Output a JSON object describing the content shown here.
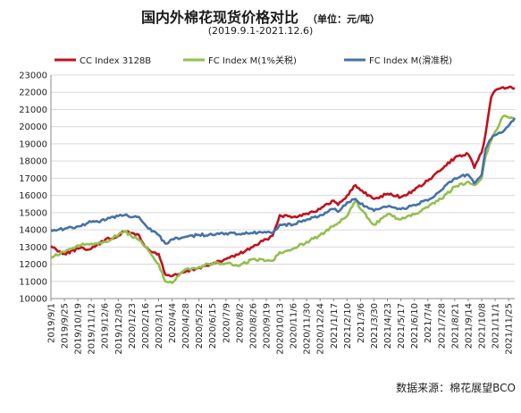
{
  "header": {
    "title": "国内外棉花现货价格对比",
    "unit": "（单位：元/吨）",
    "period": "(2019.9.1-2021.12.6)"
  },
  "source_note": "数据来源：棉花展望BCO",
  "chart_data": {
    "type": "line",
    "title": "国内外棉花现货价格对比",
    "subtitle": "(2019.9.1-2021.12.6)",
    "unit": "（单位：元/吨）",
    "ylim": [
      10000,
      23000
    ],
    "yticks": [
      10000,
      11000,
      12000,
      13000,
      14000,
      15000,
      16000,
      17000,
      18000,
      19000,
      20000,
      21000,
      22000,
      23000
    ],
    "xlim": [
      "2019-09-01",
      "2021-12-06"
    ],
    "xtick_labels": [
      "2019/9/1",
      "2019/9/25",
      "2019/10/19",
      "2019/11/12",
      "2019/12/6",
      "2019/12/30",
      "2020/1/23",
      "2020/2/16",
      "2020/3/11",
      "2020/4/4",
      "2020/4/28",
      "2020/5/22",
      "2020/6/15",
      "2020/7/9",
      "2020/8/2",
      "2020/8/26",
      "2020/9/19",
      "2020/10/13",
      "2020/11/6",
      "2020/11/30",
      "2020/12/24",
      "2021/1/17",
      "2021/2/10",
      "2021/3/6",
      "2021/3/30",
      "2021/4/23",
      "2021/5/17",
      "2021/6/10",
      "2021/7/4",
      "2021/7/28",
      "2021/8/21",
      "2021/9/14",
      "2021/10/8",
      "2021/11/1",
      "2021/11/25"
    ],
    "grid": "horizontal",
    "legend_position": "top",
    "series": [
      {
        "name": "CC Index 3128B",
        "color": "#c0111f",
        "x": [
          "2019-09-01",
          "2019-09-25",
          "2019-10-19",
          "2019-11-12",
          "2019-12-06",
          "2019-12-30",
          "2020-01-10",
          "2020-02-05",
          "2020-02-16",
          "2020-02-28",
          "2020-03-11",
          "2020-03-23",
          "2020-04-04",
          "2020-04-28",
          "2020-05-22",
          "2020-06-15",
          "2020-07-09",
          "2020-08-02",
          "2020-08-26",
          "2020-09-19",
          "2020-09-30",
          "2020-10-13",
          "2020-11-06",
          "2020-11-30",
          "2020-12-24",
          "2021-01-17",
          "2021-01-25",
          "2021-02-10",
          "2021-02-25",
          "2021-03-06",
          "2021-03-30",
          "2021-04-23",
          "2021-05-17",
          "2021-06-10",
          "2021-07-04",
          "2021-07-28",
          "2021-08-21",
          "2021-09-14",
          "2021-09-25",
          "2021-10-08",
          "2021-10-15",
          "2021-10-25",
          "2021-11-01",
          "2021-11-15",
          "2021-12-06"
        ],
        "values": [
          13050,
          12600,
          12900,
          12900,
          13400,
          13650,
          13900,
          13700,
          13000,
          12700,
          12600,
          11400,
          11300,
          11550,
          11800,
          12000,
          12300,
          12600,
          13000,
          13450,
          13650,
          14850,
          14750,
          14950,
          15200,
          15700,
          15450,
          16000,
          16600,
          16300,
          15800,
          16100,
          15900,
          16300,
          16850,
          17500,
          18200,
          18400,
          17600,
          18500,
          19600,
          21700,
          22100,
          22300,
          22250
        ]
      },
      {
        "name": "FC Index M(1%关税)",
        "color": "#92c04f",
        "x": [
          "2019-09-01",
          "2019-09-25",
          "2019-10-19",
          "2019-11-12",
          "2019-12-06",
          "2019-12-30",
          "2020-01-10",
          "2020-02-05",
          "2020-02-16",
          "2020-02-28",
          "2020-03-11",
          "2020-03-23",
          "2020-04-04",
          "2020-04-28",
          "2020-05-22",
          "2020-06-15",
          "2020-07-09",
          "2020-08-02",
          "2020-08-26",
          "2020-09-19",
          "2020-09-30",
          "2020-10-13",
          "2020-11-06",
          "2020-11-30",
          "2020-12-24",
          "2021-01-17",
          "2021-01-25",
          "2021-02-10",
          "2021-02-25",
          "2021-03-06",
          "2021-03-30",
          "2021-04-23",
          "2021-05-17",
          "2021-06-10",
          "2021-07-04",
          "2021-07-28",
          "2021-08-21",
          "2021-09-14",
          "2021-09-25",
          "2021-10-08",
          "2021-10-15",
          "2021-10-25",
          "2021-11-01",
          "2021-11-15",
          "2021-12-06"
        ],
        "values": [
          12400,
          12700,
          13100,
          13200,
          13300,
          13700,
          13900,
          13400,
          13000,
          12500,
          12000,
          11000,
          10900,
          11700,
          11850,
          12050,
          12050,
          11900,
          12300,
          12200,
          12200,
          12700,
          12900,
          13300,
          13700,
          14200,
          14400,
          14800,
          15700,
          15200,
          14300,
          14900,
          14600,
          14900,
          15300,
          15800,
          16500,
          16800,
          16600,
          17000,
          18300,
          19200,
          19700,
          20600,
          20500
        ]
      },
      {
        "name": "FC Index M(滑准税)",
        "color": "#4572a7",
        "x": [
          "2019-09-01",
          "2019-09-25",
          "2019-10-19",
          "2019-11-12",
          "2019-12-06",
          "2019-12-30",
          "2020-01-10",
          "2020-02-05",
          "2020-02-16",
          "2020-02-28",
          "2020-03-11",
          "2020-03-23",
          "2020-04-04",
          "2020-04-28",
          "2020-05-22",
          "2020-06-15",
          "2020-07-09",
          "2020-08-02",
          "2020-08-26",
          "2020-09-19",
          "2020-09-30",
          "2020-10-13",
          "2020-11-06",
          "2020-11-30",
          "2020-12-24",
          "2021-01-17",
          "2021-01-25",
          "2021-02-10",
          "2021-02-25",
          "2021-03-06",
          "2021-03-30",
          "2021-04-23",
          "2021-05-17",
          "2021-06-10",
          "2021-07-04",
          "2021-07-28",
          "2021-08-21",
          "2021-09-14",
          "2021-09-25",
          "2021-10-08",
          "2021-10-15",
          "2021-10-25",
          "2021-11-01",
          "2021-11-15",
          "2021-12-06"
        ],
        "values": [
          14000,
          14050,
          14200,
          14450,
          14550,
          14800,
          14850,
          14750,
          14300,
          13900,
          13700,
          13200,
          13450,
          13600,
          13700,
          13700,
          13800,
          13750,
          13800,
          13850,
          13800,
          14300,
          14300,
          14600,
          14850,
          15200,
          15050,
          15600,
          15800,
          15500,
          15100,
          15350,
          15200,
          15450,
          15700,
          16300,
          17000,
          17200,
          16700,
          17200,
          18700,
          19300,
          19500,
          19700,
          20500
        ]
      }
    ]
  }
}
